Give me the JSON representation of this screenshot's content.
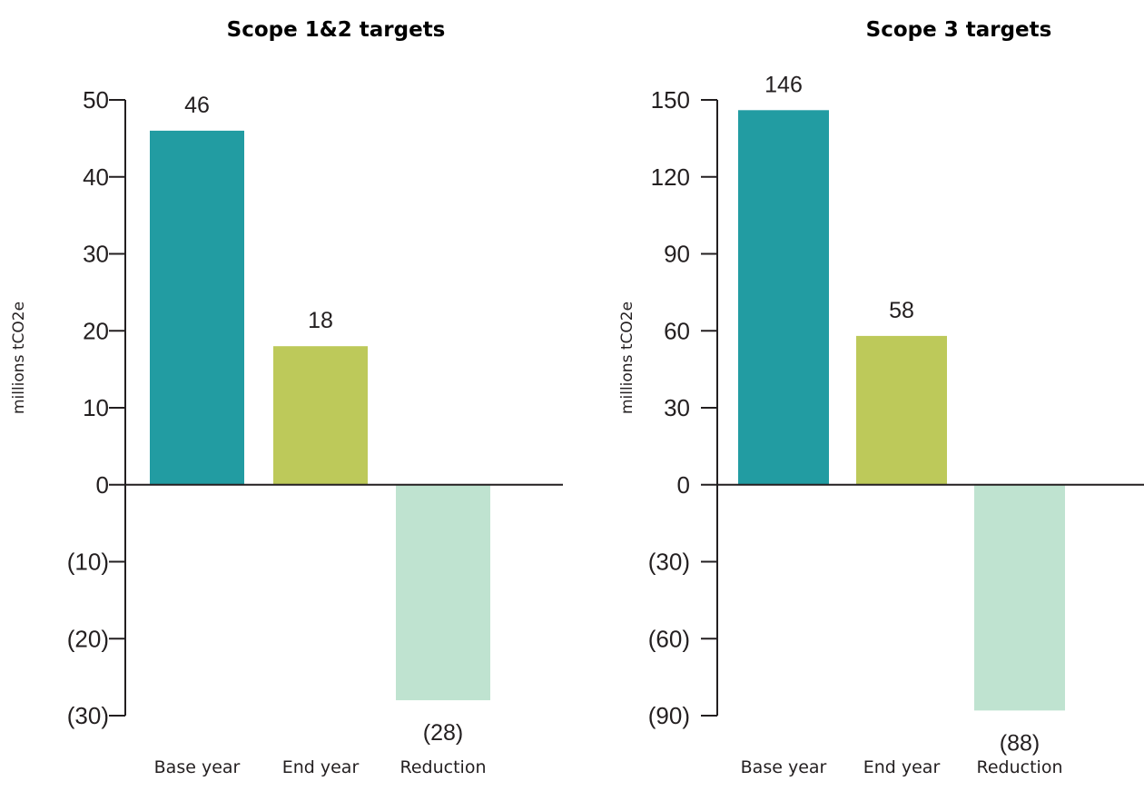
{
  "chart_data": [
    {
      "type": "bar",
      "title": "Scope 1&2 targets",
      "ylabel": "millions tCO2e",
      "categories": [
        "Base year",
        "End year",
        "Reduction"
      ],
      "values": [
        46,
        18,
        -28
      ],
      "value_labels": [
        "46",
        "18",
        "(28)"
      ],
      "ylim": [
        -30,
        50
      ],
      "yticks": [
        50,
        40,
        30,
        20,
        10,
        0,
        -10,
        -20,
        -30
      ],
      "ytick_labels": [
        "50",
        "40",
        "30",
        "20",
        "10",
        "0",
        "(10)",
        "(20)",
        "(30)"
      ],
      "bar_colors": [
        "#229ca2",
        "#bdc95a",
        "#bfe3d0"
      ],
      "grid": false,
      "legend": "none"
    },
    {
      "type": "bar",
      "title": "Scope 3 targets",
      "ylabel": "millions tCO2e",
      "categories": [
        "Base year",
        "End year",
        "Reduction"
      ],
      "values": [
        146,
        58,
        -88
      ],
      "value_labels": [
        "146",
        "58",
        "(88)"
      ],
      "ylim": [
        -90,
        150
      ],
      "yticks": [
        150,
        120,
        90,
        60,
        30,
        0,
        -30,
        -60,
        -90
      ],
      "ytick_labels": [
        "150",
        "120",
        "90",
        "60",
        "30",
        "0",
        "(30)",
        "(60)",
        "(90)"
      ],
      "bar_colors": [
        "#229ca2",
        "#bdc95a",
        "#bfe3d0"
      ],
      "grid": false,
      "legend": "none"
    }
  ]
}
